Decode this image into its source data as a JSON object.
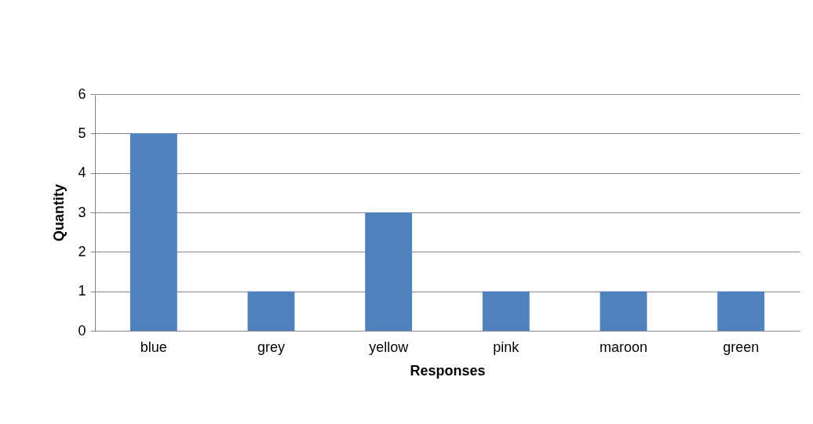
{
  "chart_data": {
    "type": "bar",
    "xlabel": "Responses",
    "ylabel": "Quantity",
    "categories": [
      "blue",
      "grey",
      "yellow",
      "pink",
      "maroon",
      "green"
    ],
    "values": [
      5,
      1,
      3,
      1,
      1,
      1
    ],
    "color": "#4f81bd",
    "ylim": [
      0,
      6
    ],
    "yticks": [
      0,
      1,
      2,
      3,
      4,
      5,
      6
    ],
    "grid": "y"
  }
}
